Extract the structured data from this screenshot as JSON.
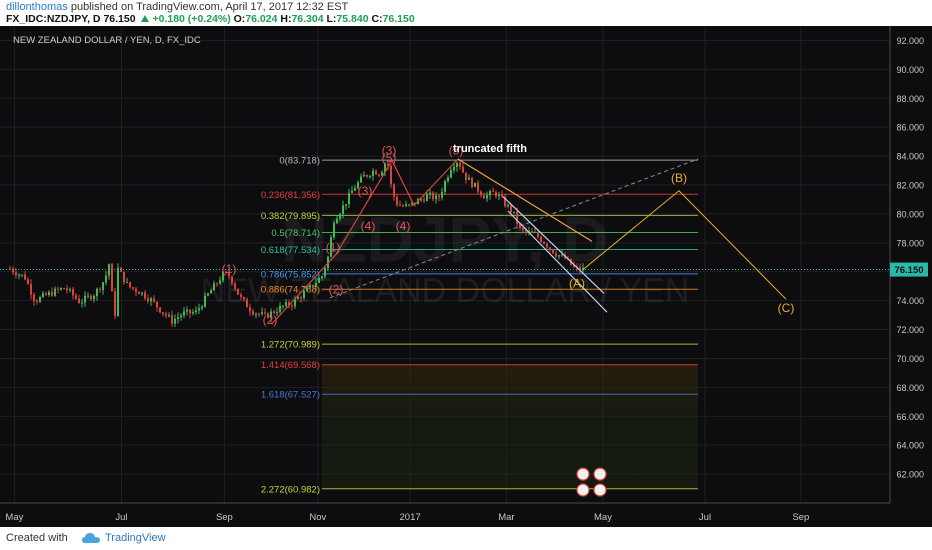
{
  "header": {
    "author": "dillonthomas",
    "published_text": "published on TradingView.com, April 17, 2017 12:32 EST",
    "symbol": "FX_IDC:NZDJPY, D",
    "last": "76.150",
    "change": "+0.180 (+0.24%)",
    "o_label": "O:",
    "o": "76.024",
    "h_label": "H:",
    "h": "76.304",
    "l_label": "L:",
    "l": "75.840",
    "c_label": "C:",
    "c": "76.150"
  },
  "footer": {
    "created": "Created with",
    "brand": "TradingView"
  },
  "chart_data": {
    "type": "candlestick",
    "title": "NEW ZEALAND DOLLAR / YEN, D, FX_IDC",
    "watermark_line1": "NZDJPY, D",
    "watermark_line2": "NEW ZEALAND DOLLAR / YEN",
    "ylim": [
      60.0,
      93.0
    ],
    "y_ticks": [
      "92.000",
      "90.000",
      "88.000",
      "86.000",
      "84.000",
      "82.000",
      "80.000",
      "78.000",
      "76.000",
      "74.000",
      "72.000",
      "70.000",
      "68.000",
      "66.000",
      "64.000",
      "62.000"
    ],
    "y_tick_values": [
      92,
      90,
      88,
      86,
      84,
      82,
      80,
      78,
      76,
      74,
      72,
      70,
      68,
      66,
      64,
      62
    ],
    "x_ticks": [
      "May",
      "Jul",
      "Sep",
      "Nov",
      "2017",
      "Mar",
      "May",
      "Jul",
      "Sep"
    ],
    "x_tick_values": [
      14.4,
      121.5,
      224.4,
      317.8,
      410.1,
      506.4,
      603.0,
      705.0,
      800.9
    ],
    "last_price": "76.150",
    "last_value": 76.15,
    "approx_price_path": [
      [
        10,
        76.2
      ],
      [
        25,
        75.6
      ],
      [
        35,
        74.0
      ],
      [
        50,
        74.5
      ],
      [
        65,
        74.9
      ],
      [
        80,
        73.9
      ],
      [
        95,
        74.5
      ],
      [
        105,
        75.5
      ],
      [
        110,
        76.8
      ],
      [
        114,
        72.1
      ],
      [
        118,
        76.2
      ],
      [
        128,
        75.0
      ],
      [
        140,
        74.6
      ],
      [
        150,
        74.1
      ],
      [
        160,
        73.4
      ],
      [
        172,
        72.6
      ],
      [
        183,
        73.1
      ],
      [
        196,
        73.2
      ],
      [
        210,
        74.6
      ],
      [
        223,
        75.8
      ],
      [
        230,
        75.7
      ],
      [
        240,
        74.2
      ],
      [
        252,
        73.3
      ],
      [
        265,
        72.9
      ],
      [
        275,
        73.3
      ],
      [
        283,
        73.6
      ],
      [
        292,
        73.8
      ],
      [
        300,
        74.3
      ],
      [
        310,
        74.9
      ],
      [
        322,
        75.7
      ],
      [
        328,
        77.0
      ],
      [
        334,
        79.6
      ],
      [
        344,
        80.6
      ],
      [
        354,
        81.8
      ],
      [
        364,
        82.6
      ],
      [
        374,
        83.0
      ],
      [
        380,
        82.8
      ],
      [
        387,
        83.8
      ],
      [
        392,
        81.5
      ],
      [
        398,
        80.6
      ],
      [
        408,
        80.5
      ],
      [
        418,
        80.9
      ],
      [
        428,
        81.3
      ],
      [
        438,
        81.0
      ],
      [
        446,
        82.4
      ],
      [
        452,
        83.4
      ],
      [
        458,
        83.7
      ],
      [
        465,
        82.6
      ],
      [
        475,
        81.9
      ],
      [
        485,
        81.2
      ],
      [
        495,
        81.5
      ],
      [
        505,
        80.7
      ],
      [
        513,
        80.1
      ],
      [
        520,
        78.9
      ],
      [
        528,
        78.7
      ],
      [
        535,
        78.6
      ],
      [
        545,
        78.0
      ],
      [
        555,
        77.3
      ],
      [
        565,
        76.9
      ],
      [
        575,
        76.2
      ],
      [
        583,
        76.15
      ]
    ],
    "fibonacci": [
      {
        "label": "0(83.718)",
        "value": 83.718,
        "color": "#b7b7b7"
      },
      {
        "label": "0.236(81.356)",
        "value": 81.356,
        "color": "#e0413a"
      },
      {
        "label": "0.382(79.895)",
        "value": 79.895,
        "color": "#b4d442"
      },
      {
        "label": "0.5(78.714)",
        "value": 78.714,
        "color": "#4ec953"
      },
      {
        "label": "0.618(77.534)",
        "value": 77.534,
        "color": "#2fc29a"
      },
      {
        "label": "0.786(75.852)",
        "value": 75.852,
        "color": "#4b98ee"
      },
      {
        "label": "0.886(74.788)",
        "value": 74.788,
        "color": "#f08c23"
      },
      {
        "label": "1.272(70.989)",
        "value": 70.989,
        "color": "#c9d23a"
      },
      {
        "label": "1.414(69.568)",
        "value": 69.568,
        "color": "#e0413a"
      },
      {
        "label": "1.618(67.527)",
        "value": 67.527,
        "color": "#4b74d8"
      },
      {
        "label": "2.272(60.982)",
        "value": 60.982,
        "color": "#c9d23a"
      }
    ],
    "wave_labels": [
      {
        "text": "(1)",
        "x": 229,
        "y": 75.9,
        "color": "#e05656"
      },
      {
        "text": "(2)",
        "x": 270,
        "y": 72.4,
        "color": "#e05656"
      },
      {
        "text": "(2)",
        "x": 336,
        "y": 74.5,
        "color": "#e05656"
      },
      {
        "text": "(1)",
        "x": 333,
        "y": 77.4,
        "color": "#e05656"
      },
      {
        "text": "(3)",
        "x": 365,
        "y": 81.3,
        "color": "#e05656"
      },
      {
        "text": "(4)",
        "x": 368,
        "y": 78.9,
        "color": "#e05656"
      },
      {
        "text": "(4)",
        "x": 403,
        "y": 78.9,
        "color": "#e05656"
      },
      {
        "text": "(5)",
        "x": 389,
        "y": 83.6,
        "color": "#e05656"
      },
      {
        "text": "(3)",
        "x": 389,
        "y": 84.1,
        "color": "#e05656"
      },
      {
        "text": "(5)",
        "x": 456,
        "y": 84.1,
        "color": "#e05656"
      },
      {
        "text": "(A)",
        "x": 577,
        "y": 74.9,
        "color": "#e6b022"
      },
      {
        "text": "(B)",
        "x": 679,
        "y": 82.2,
        "color": "#e6b022"
      },
      {
        "text": "(C)",
        "x": 786,
        "y": 73.2,
        "color": "#e6b022"
      }
    ],
    "annotation": {
      "text": "truncated fifth",
      "x": 490,
      "y": 84.3
    },
    "projection": [
      [
        583,
        76.15
      ],
      [
        679,
        81.6
      ],
      [
        786,
        74.1
      ]
    ]
  }
}
